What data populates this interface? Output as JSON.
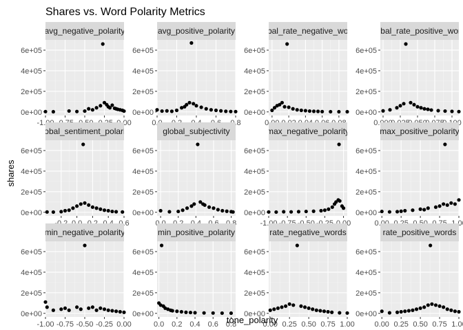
{
  "chart_data": {
    "type": "scatter",
    "title": "Shares vs. Word Polarity Metrics",
    "xlabel": "tone_polarity",
    "ylabel": "shares",
    "grid": true,
    "facet_rows": 3,
    "facet_cols": 4,
    "y_ticks": [
      "0e+00",
      "2e+05",
      "4e+05",
      "6e+05"
    ],
    "ylim": [
      -35000,
      700000
    ],
    "colors": {
      "panel": "#EBEBEB",
      "strip": "#D9D9D9",
      "point": "#000000",
      "grid_major": "#FFFFFF"
    },
    "panels": [
      {
        "label": "avg_negative_polarity",
        "xlim": [
          -1.0,
          0.0
        ],
        "x_ticks": [
          -1.0,
          -0.75,
          -0.5,
          -0.25,
          0.0
        ],
        "x_tick_labels": [
          "-1.00",
          "-0.75",
          "-0.50",
          "-0.25",
          "0.00"
        ],
        "points": [
          [
            -1.0,
            3000
          ],
          [
            -0.9,
            1500
          ],
          [
            -0.7,
            9000
          ],
          [
            -0.6,
            4000
          ],
          [
            -0.5,
            8000
          ],
          [
            -0.45,
            30000
          ],
          [
            -0.4,
            20000
          ],
          [
            -0.35,
            40000
          ],
          [
            -0.3,
            60000
          ],
          [
            -0.27,
            660000
          ],
          [
            -0.25,
            90000
          ],
          [
            -0.22,
            70000
          ],
          [
            -0.2,
            50000
          ],
          [
            -0.18,
            40000
          ],
          [
            -0.15,
            65000
          ],
          [
            -0.12,
            35000
          ],
          [
            -0.1,
            30000
          ],
          [
            -0.08,
            25000
          ],
          [
            -0.05,
            20000
          ],
          [
            -0.02,
            15000
          ],
          [
            0.0,
            8000
          ]
        ]
      },
      {
        "label": "avg_positive_polarity",
        "xlim": [
          0.0,
          0.8
        ],
        "x_ticks": [
          0.0,
          0.2,
          0.4,
          0.6,
          0.8
        ],
        "x_tick_labels": [
          "0.0",
          "0.2",
          "0.4",
          "0.6",
          "0.8"
        ],
        "points": [
          [
            0.0,
            20000
          ],
          [
            0.05,
            8000
          ],
          [
            0.1,
            10000
          ],
          [
            0.15,
            6000
          ],
          [
            0.2,
            15000
          ],
          [
            0.25,
            40000
          ],
          [
            0.28,
            50000
          ],
          [
            0.3,
            70000
          ],
          [
            0.33,
            90000
          ],
          [
            0.35,
            670000
          ],
          [
            0.37,
            80000
          ],
          [
            0.4,
            60000
          ],
          [
            0.45,
            45000
          ],
          [
            0.5,
            30000
          ],
          [
            0.55,
            20000
          ],
          [
            0.6,
            15000
          ],
          [
            0.65,
            10000
          ],
          [
            0.7,
            6000
          ],
          [
            0.75,
            4000
          ],
          [
            0.8,
            3000
          ]
        ]
      },
      {
        "label": "global_rate_negative_words",
        "xlim": [
          -0.004,
          0.09
        ],
        "x_ticks": [
          0.0,
          0.02,
          0.04,
          0.06,
          0.08
        ],
        "x_tick_labels": [
          "0.00",
          "0.02",
          "0.04",
          "0.06",
          "0.08"
        ],
        "points": [
          [
            0.0,
            15000
          ],
          [
            0.003,
            40000
          ],
          [
            0.006,
            60000
          ],
          [
            0.009,
            70000
          ],
          [
            0.012,
            90000
          ],
          [
            0.015,
            50000
          ],
          [
            0.018,
            660000
          ],
          [
            0.02,
            45000
          ],
          [
            0.025,
            30000
          ],
          [
            0.03,
            20000
          ],
          [
            0.035,
            15000
          ],
          [
            0.04,
            12000
          ],
          [
            0.045,
            8000
          ],
          [
            0.05,
            6000
          ],
          [
            0.055,
            5000
          ],
          [
            0.06,
            3000
          ],
          [
            0.07,
            2000
          ],
          [
            0.08,
            1500
          ],
          [
            0.09,
            1500
          ]
        ]
      },
      {
        "label": "global_rate_positive_words",
        "xlim": [
          -0.004,
          0.11
        ],
        "x_ticks": [
          0.0,
          0.025,
          0.05,
          0.075,
          0.1
        ],
        "x_tick_labels": [
          "0.000",
          "0.025",
          "0.050",
          "0.075",
          "0.100"
        ],
        "points": [
          [
            0.0,
            10000
          ],
          [
            0.01,
            20000
          ],
          [
            0.02,
            40000
          ],
          [
            0.025,
            60000
          ],
          [
            0.03,
            80000
          ],
          [
            0.033,
            660000
          ],
          [
            0.04,
            90000
          ],
          [
            0.045,
            70000
          ],
          [
            0.05,
            50000
          ],
          [
            0.055,
            40000
          ],
          [
            0.06,
            30000
          ],
          [
            0.065,
            25000
          ],
          [
            0.07,
            18000
          ],
          [
            0.08,
            12000
          ],
          [
            0.09,
            8000
          ],
          [
            0.1,
            5000
          ],
          [
            0.11,
            3000
          ]
        ]
      },
      {
        "label": "global_sentiment_polarity",
        "xlim": [
          -0.4,
          0.6
        ],
        "x_ticks": [
          -0.2,
          0.0,
          0.2,
          0.4,
          0.6
        ],
        "x_tick_labels": [
          "-0.2",
          "0.0",
          "0.2",
          "0.4",
          "0.6"
        ],
        "points": [
          [
            -0.38,
            3000
          ],
          [
            -0.3,
            2000
          ],
          [
            -0.2,
            6000
          ],
          [
            -0.15,
            15000
          ],
          [
            -0.1,
            20000
          ],
          [
            -0.05,
            40000
          ],
          [
            0.0,
            60000
          ],
          [
            0.05,
            80000
          ],
          [
            0.08,
            660000
          ],
          [
            0.1,
            90000
          ],
          [
            0.15,
            70000
          ],
          [
            0.2,
            50000
          ],
          [
            0.25,
            40000
          ],
          [
            0.3,
            30000
          ],
          [
            0.35,
            20000
          ],
          [
            0.4,
            15000
          ],
          [
            0.45,
            8000
          ],
          [
            0.5,
            5000
          ],
          [
            0.58,
            3000
          ]
        ]
      },
      {
        "label": "global_subjectivity",
        "xlim": [
          -0.04,
          0.85
        ],
        "x_ticks": [
          0.0,
          0.2,
          0.4,
          0.6,
          0.8
        ],
        "x_tick_labels": [
          "0.0",
          "0.2",
          "0.4",
          "0.6",
          "0.8"
        ],
        "points": [
          [
            0.0,
            15000
          ],
          [
            0.1,
            5000
          ],
          [
            0.2,
            8000
          ],
          [
            0.25,
            20000
          ],
          [
            0.3,
            40000
          ],
          [
            0.35,
            60000
          ],
          [
            0.38,
            80000
          ],
          [
            0.42,
            660000
          ],
          [
            0.45,
            100000
          ],
          [
            0.48,
            80000
          ],
          [
            0.5,
            70000
          ],
          [
            0.55,
            50000
          ],
          [
            0.6,
            40000
          ],
          [
            0.65,
            25000
          ],
          [
            0.7,
            15000
          ],
          [
            0.75,
            10000
          ],
          [
            0.8,
            6000
          ],
          [
            0.82,
            3000
          ]
        ]
      },
      {
        "label": "max_negative_polarity",
        "xlim": [
          -1.0,
          0.05
        ],
        "x_ticks": [
          -1.0,
          -0.75,
          -0.5,
          -0.25,
          0.0
        ],
        "x_tick_labels": [
          "-1.00",
          "-0.75",
          "-0.50",
          "-0.25",
          "0.00"
        ],
        "points": [
          [
            -1.0,
            3000
          ],
          [
            -0.9,
            2000
          ],
          [
            -0.8,
            5000
          ],
          [
            -0.7,
            4000
          ],
          [
            -0.6,
            6000
          ],
          [
            -0.5,
            8000
          ],
          [
            -0.4,
            10000
          ],
          [
            -0.3,
            15000
          ],
          [
            -0.25,
            20000
          ],
          [
            -0.2,
            30000
          ],
          [
            -0.15,
            50000
          ],
          [
            -0.12,
            80000
          ],
          [
            -0.1,
            100000
          ],
          [
            -0.07,
            120000
          ],
          [
            -0.06,
            660000
          ],
          [
            -0.05,
            110000
          ],
          [
            -0.02,
            60000
          ],
          [
            0.0,
            40000
          ]
        ]
      },
      {
        "label": "max_positive_polarity",
        "xlim": [
          -0.02,
          1.0
        ],
        "x_ticks": [
          0.0,
          0.25,
          0.5,
          0.75,
          1.0
        ],
        "x_tick_labels": [
          "0.00",
          "0.25",
          "0.50",
          "0.75",
          "1.00"
        ],
        "points": [
          [
            0.0,
            8000
          ],
          [
            0.1,
            4000
          ],
          [
            0.2,
            6000
          ],
          [
            0.25,
            10000
          ],
          [
            0.3,
            15000
          ],
          [
            0.4,
            20000
          ],
          [
            0.5,
            30000
          ],
          [
            0.55,
            25000
          ],
          [
            0.6,
            40000
          ],
          [
            0.7,
            50000
          ],
          [
            0.75,
            60000
          ],
          [
            0.8,
            80000
          ],
          [
            0.82,
            660000
          ],
          [
            0.85,
            70000
          ],
          [
            0.9,
            90000
          ],
          [
            0.95,
            80000
          ],
          [
            1.0,
            120000
          ]
        ]
      },
      {
        "label": "min_negative_polarity",
        "xlim": [
          -1.0,
          0.0
        ],
        "x_ticks": [
          -1.0,
          -0.75,
          -0.5,
          -0.25,
          0.0
        ],
        "x_tick_labels": [
          "-1.00",
          "-0.75",
          "-0.50",
          "-0.25",
          "0.00"
        ],
        "points": [
          [
            -1.0,
            110000
          ],
          [
            -0.98,
            60000
          ],
          [
            -0.9,
            30000
          ],
          [
            -0.8,
            40000
          ],
          [
            -0.75,
            50000
          ],
          [
            -0.7,
            30000
          ],
          [
            -0.6,
            60000
          ],
          [
            -0.55,
            40000
          ],
          [
            -0.5,
            660000
          ],
          [
            -0.45,
            50000
          ],
          [
            -0.4,
            60000
          ],
          [
            -0.35,
            30000
          ],
          [
            -0.3,
            50000
          ],
          [
            -0.25,
            40000
          ],
          [
            -0.2,
            30000
          ],
          [
            -0.15,
            25000
          ],
          [
            -0.1,
            20000
          ],
          [
            -0.05,
            15000
          ],
          [
            0.0,
            10000
          ]
        ]
      },
      {
        "label": "min_positive_polarity",
        "xlim": [
          -0.02,
          0.85
        ],
        "x_ticks": [
          0.0,
          0.2,
          0.4,
          0.6,
          0.8
        ],
        "x_tick_labels": [
          "0.0",
          "0.2",
          "0.4",
          "0.6",
          "0.8"
        ],
        "points": [
          [
            0.0,
            100000
          ],
          [
            0.02,
            80000
          ],
          [
            0.03,
            660000
          ],
          [
            0.05,
            70000
          ],
          [
            0.07,
            50000
          ],
          [
            0.1,
            40000
          ],
          [
            0.13,
            30000
          ],
          [
            0.15,
            25000
          ],
          [
            0.2,
            20000
          ],
          [
            0.25,
            15000
          ],
          [
            0.3,
            10000
          ],
          [
            0.35,
            8000
          ],
          [
            0.4,
            6000
          ],
          [
            0.5,
            4000
          ],
          [
            0.6,
            3000
          ],
          [
            0.7,
            2000
          ],
          [
            0.8,
            1500
          ]
        ]
      },
      {
        "label": "rate_negative_words",
        "xlim": [
          -0.02,
          1.0
        ],
        "x_ticks": [
          0.0,
          0.25,
          0.5,
          0.75,
          1.0
        ],
        "x_tick_labels": [
          "0.00",
          "0.25",
          "0.50",
          "0.75",
          "1.00"
        ],
        "points": [
          [
            0.0,
            30000
          ],
          [
            0.05,
            40000
          ],
          [
            0.1,
            50000
          ],
          [
            0.15,
            60000
          ],
          [
            0.2,
            70000
          ],
          [
            0.25,
            90000
          ],
          [
            0.3,
            80000
          ],
          [
            0.35,
            660000
          ],
          [
            0.4,
            70000
          ],
          [
            0.45,
            60000
          ],
          [
            0.5,
            50000
          ],
          [
            0.55,
            40000
          ],
          [
            0.6,
            30000
          ],
          [
            0.65,
            25000
          ],
          [
            0.7,
            20000
          ],
          [
            0.75,
            15000
          ],
          [
            0.8,
            10000
          ],
          [
            0.9,
            5000
          ],
          [
            1.0,
            3000
          ]
        ]
      },
      {
        "label": "rate_positive_words",
        "xlim": [
          -0.02,
          1.0
        ],
        "x_ticks": [
          0.0,
          0.25,
          0.5,
          0.75,
          1.0
        ],
        "x_tick_labels": [
          "0.00",
          "0.25",
          "0.50",
          "0.75",
          "1.00"
        ],
        "points": [
          [
            0.0,
            20000
          ],
          [
            0.1,
            5000
          ],
          [
            0.2,
            10000
          ],
          [
            0.25,
            15000
          ],
          [
            0.3,
            20000
          ],
          [
            0.35,
            25000
          ],
          [
            0.4,
            30000
          ],
          [
            0.45,
            40000
          ],
          [
            0.5,
            50000
          ],
          [
            0.55,
            60000
          ],
          [
            0.6,
            80000
          ],
          [
            0.63,
            660000
          ],
          [
            0.65,
            90000
          ],
          [
            0.7,
            80000
          ],
          [
            0.75,
            70000
          ],
          [
            0.8,
            60000
          ],
          [
            0.85,
            40000
          ],
          [
            0.9,
            30000
          ],
          [
            0.95,
            20000
          ],
          [
            1.0,
            15000
          ]
        ]
      }
    ]
  }
}
